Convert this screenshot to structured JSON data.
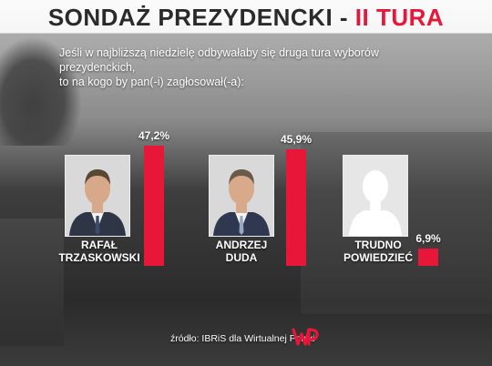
{
  "header": {
    "title_main": "SONDAŻ PREZYDENCKI - ",
    "title_accent": "II TURA"
  },
  "question": {
    "line1": "Jeśli w najbliższą niedzielę odbywałaby się druga tura wyborów prezydenckich,",
    "line2": "to na kogo by pan(-i) zagłosował(-a):"
  },
  "chart_data": {
    "type": "bar",
    "categories": [
      "RAFAŁ TRZASKOWSKI",
      "ANDRZEJ DUDA",
      "TRUDNO POWIEDZIEĆ"
    ],
    "values": [
      47.2,
      45.9,
      6.9
    ],
    "value_labels": [
      "47,2%",
      "45,9%",
      "6,9%"
    ],
    "name_lines": [
      [
        "RAFAŁ",
        "TRZASKOWSKI"
      ],
      [
        "ANDRZEJ",
        "DUDA"
      ],
      [
        "TRUDNO",
        "POWIEDZIEĆ"
      ]
    ],
    "bar_color": "#e8173a",
    "ylim": [
      0,
      47.2
    ],
    "grid": false,
    "legend": "none"
  },
  "footer": {
    "source": "źródło: IBRiS dla Wirtualnej Polski",
    "logo_text": "WP"
  },
  "colors": {
    "accent": "#e8173a",
    "title": "#2a2a2a",
    "text": "#ffffff"
  }
}
